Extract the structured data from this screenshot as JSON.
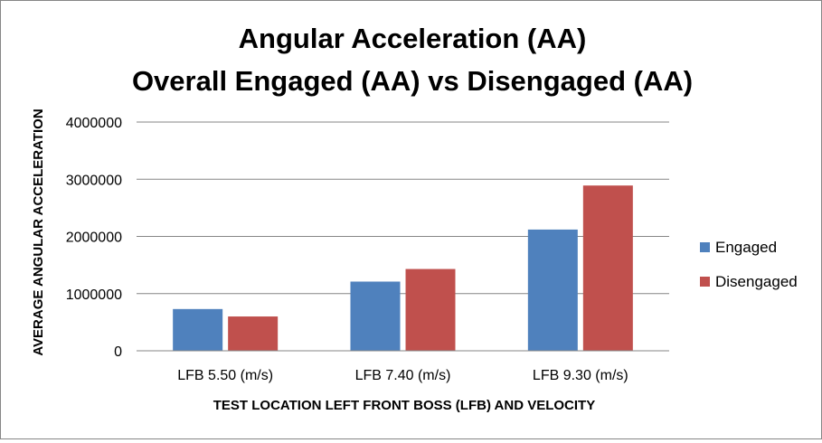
{
  "chart_data": {
    "type": "bar",
    "title_line1": "Angular Acceleration (AA)",
    "title_line2": "Overall Engaged (AA) vs Disengaged (AA)",
    "xlabel": "TEST LOCATION LEFT FRONT BOSS (LFB) AND VELOCITY",
    "ylabel": "AVERAGE ANGULAR ACCELERATION",
    "categories": [
      "LFB 5.50 (m/s)",
      "LFB 7.40 (m/s)",
      "LFB 9.30 (m/s)"
    ],
    "series": [
      {
        "name": "Engaged",
        "color": "#4f81bd",
        "values": [
          730000,
          1210000,
          2120000
        ]
      },
      {
        "name": "Disengaged",
        "color": "#c0504d",
        "values": [
          600000,
          1430000,
          2890000
        ]
      }
    ],
    "ylim": [
      0,
      4000000
    ],
    "yticks": [
      "0",
      "1000000",
      "2000000",
      "3000000",
      "4000000"
    ],
    "grid": true,
    "legend_position": "right"
  }
}
